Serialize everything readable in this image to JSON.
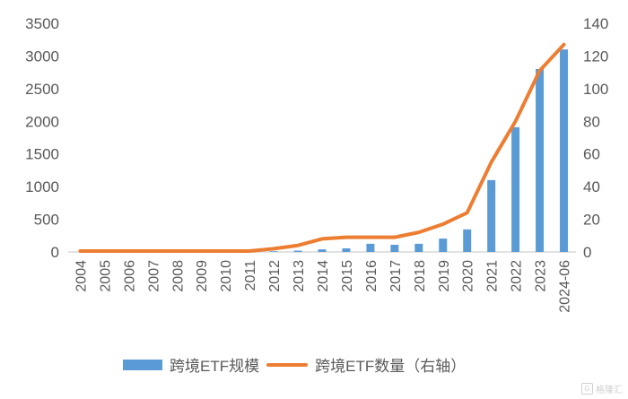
{
  "chart_data": {
    "type": "bar+line",
    "title": "",
    "categories": [
      "2004",
      "2005",
      "2006",
      "2007",
      "2008",
      "2009",
      "2010",
      "2011",
      "2012",
      "2013",
      "2014",
      "2015",
      "2016",
      "2017",
      "2018",
      "2019",
      "2020",
      "2021",
      "2022",
      "2023",
      "2024-06"
    ],
    "series": [
      {
        "name": "跨境ETF规模",
        "type": "bar",
        "axis": "left",
        "color": "#5b9bd5",
        "values": [
          0,
          0,
          0,
          0,
          0,
          0,
          0,
          0,
          10,
          20,
          40,
          55,
          125,
          110,
          125,
          205,
          345,
          1100,
          1910,
          2800,
          3100
        ]
      },
      {
        "name": "跨境ETF数量（右轴）",
        "type": "line",
        "axis": "right",
        "color": "#ed7d31",
        "values": [
          0,
          0,
          0,
          0,
          0,
          0,
          0,
          0,
          2,
          4,
          8,
          9,
          9,
          9,
          12,
          17,
          24,
          55,
          80,
          111,
          127
        ]
      }
    ],
    "left_axis": {
      "ylim": [
        0,
        3500
      ],
      "ticks": [
        "0",
        "500",
        "1000",
        "1500",
        "2000",
        "2500",
        "3000",
        "3500"
      ]
    },
    "right_axis": {
      "ylim": [
        0,
        140
      ],
      "ticks": [
        "0",
        "20",
        "40",
        "60",
        "80",
        "100",
        "120",
        "140"
      ]
    },
    "xlabel": "",
    "ylabel": "",
    "grid": false,
    "legend_position": "bottom"
  },
  "legend": {
    "bar_label": "跨境ETF规模",
    "line_label": "跨境ETF数量（右轴）"
  },
  "watermark": {
    "icon": "G",
    "text": "格隆汇"
  }
}
